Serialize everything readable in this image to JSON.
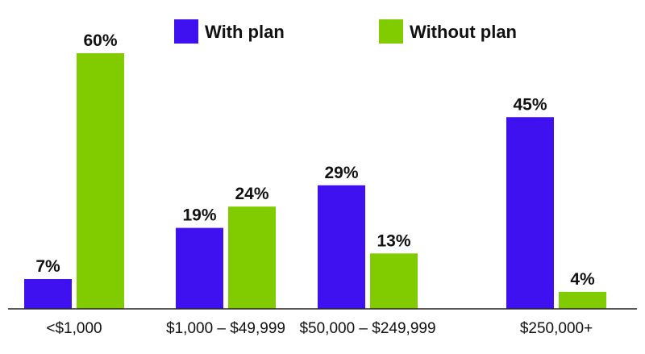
{
  "chart_data": {
    "type": "bar",
    "title": "",
    "xlabel": "",
    "ylabel": "",
    "ylim": [
      0,
      60
    ],
    "grid": false,
    "legend_position": "top",
    "categories": [
      "<$1,000",
      "$1,000 – $49,999",
      "$50,000 – $249,999",
      "$250,000+"
    ],
    "series": [
      {
        "name": "With plan",
        "color": "#3f10f0",
        "values": [
          7,
          19,
          29,
          45
        ],
        "labels": [
          "7%",
          "19%",
          "29%",
          "45%"
        ]
      },
      {
        "name": "Without plan",
        "color": "#80cc00",
        "values": [
          60,
          24,
          13,
          4
        ],
        "labels": [
          "60%",
          "24%",
          "13%",
          "4%"
        ]
      }
    ]
  }
}
